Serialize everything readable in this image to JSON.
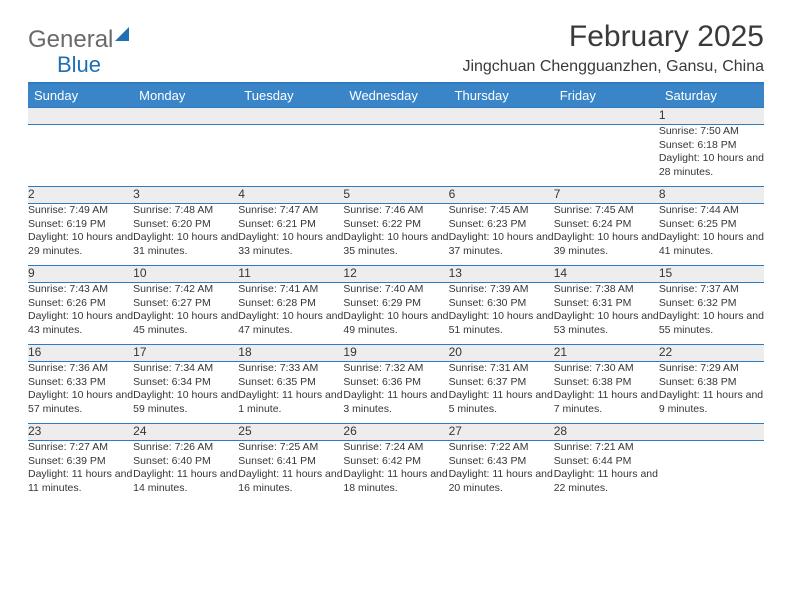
{
  "logo": {
    "text1": "General",
    "text2": "Blue"
  },
  "title": "February 2025",
  "location": "Jingchuan Chengguanzhen, Gansu, China",
  "colors": {
    "header_bg": "#3a85c7",
    "divider": "#2f7bbf",
    "daynum_bg": "#ededed",
    "text": "#363636",
    "logo_gray": "#6a6a6a",
    "logo_blue": "#1f6fb2"
  },
  "typography": {
    "title_fontsize": 30,
    "location_fontsize": 16,
    "header_fontsize": 13,
    "daynum_fontsize": 12,
    "body_fontsize": 10.5
  },
  "day_headers": [
    "Sunday",
    "Monday",
    "Tuesday",
    "Wednesday",
    "Thursday",
    "Friday",
    "Saturday"
  ],
  "weeks": [
    [
      null,
      null,
      null,
      null,
      null,
      null,
      {
        "n": "1",
        "sr": "7:50 AM",
        "ss": "6:18 PM",
        "dl": "10 hours and 28 minutes."
      }
    ],
    [
      {
        "n": "2",
        "sr": "7:49 AM",
        "ss": "6:19 PM",
        "dl": "10 hours and 29 minutes."
      },
      {
        "n": "3",
        "sr": "7:48 AM",
        "ss": "6:20 PM",
        "dl": "10 hours and 31 minutes."
      },
      {
        "n": "4",
        "sr": "7:47 AM",
        "ss": "6:21 PM",
        "dl": "10 hours and 33 minutes."
      },
      {
        "n": "5",
        "sr": "7:46 AM",
        "ss": "6:22 PM",
        "dl": "10 hours and 35 minutes."
      },
      {
        "n": "6",
        "sr": "7:45 AM",
        "ss": "6:23 PM",
        "dl": "10 hours and 37 minutes."
      },
      {
        "n": "7",
        "sr": "7:45 AM",
        "ss": "6:24 PM",
        "dl": "10 hours and 39 minutes."
      },
      {
        "n": "8",
        "sr": "7:44 AM",
        "ss": "6:25 PM",
        "dl": "10 hours and 41 minutes."
      }
    ],
    [
      {
        "n": "9",
        "sr": "7:43 AM",
        "ss": "6:26 PM",
        "dl": "10 hours and 43 minutes."
      },
      {
        "n": "10",
        "sr": "7:42 AM",
        "ss": "6:27 PM",
        "dl": "10 hours and 45 minutes."
      },
      {
        "n": "11",
        "sr": "7:41 AM",
        "ss": "6:28 PM",
        "dl": "10 hours and 47 minutes."
      },
      {
        "n": "12",
        "sr": "7:40 AM",
        "ss": "6:29 PM",
        "dl": "10 hours and 49 minutes."
      },
      {
        "n": "13",
        "sr": "7:39 AM",
        "ss": "6:30 PM",
        "dl": "10 hours and 51 minutes."
      },
      {
        "n": "14",
        "sr": "7:38 AM",
        "ss": "6:31 PM",
        "dl": "10 hours and 53 minutes."
      },
      {
        "n": "15",
        "sr": "7:37 AM",
        "ss": "6:32 PM",
        "dl": "10 hours and 55 minutes."
      }
    ],
    [
      {
        "n": "16",
        "sr": "7:36 AM",
        "ss": "6:33 PM",
        "dl": "10 hours and 57 minutes."
      },
      {
        "n": "17",
        "sr": "7:34 AM",
        "ss": "6:34 PM",
        "dl": "10 hours and 59 minutes."
      },
      {
        "n": "18",
        "sr": "7:33 AM",
        "ss": "6:35 PM",
        "dl": "11 hours and 1 minute."
      },
      {
        "n": "19",
        "sr": "7:32 AM",
        "ss": "6:36 PM",
        "dl": "11 hours and 3 minutes."
      },
      {
        "n": "20",
        "sr": "7:31 AM",
        "ss": "6:37 PM",
        "dl": "11 hours and 5 minutes."
      },
      {
        "n": "21",
        "sr": "7:30 AM",
        "ss": "6:38 PM",
        "dl": "11 hours and 7 minutes."
      },
      {
        "n": "22",
        "sr": "7:29 AM",
        "ss": "6:38 PM",
        "dl": "11 hours and 9 minutes."
      }
    ],
    [
      {
        "n": "23",
        "sr": "7:27 AM",
        "ss": "6:39 PM",
        "dl": "11 hours and 11 minutes."
      },
      {
        "n": "24",
        "sr": "7:26 AM",
        "ss": "6:40 PM",
        "dl": "11 hours and 14 minutes."
      },
      {
        "n": "25",
        "sr": "7:25 AM",
        "ss": "6:41 PM",
        "dl": "11 hours and 16 minutes."
      },
      {
        "n": "26",
        "sr": "7:24 AM",
        "ss": "6:42 PM",
        "dl": "11 hours and 18 minutes."
      },
      {
        "n": "27",
        "sr": "7:22 AM",
        "ss": "6:43 PM",
        "dl": "11 hours and 20 minutes."
      },
      {
        "n": "28",
        "sr": "7:21 AM",
        "ss": "6:44 PM",
        "dl": "11 hours and 22 minutes."
      },
      null
    ]
  ],
  "labels": {
    "sunrise": "Sunrise:",
    "sunset": "Sunset:",
    "daylight": "Daylight:"
  }
}
